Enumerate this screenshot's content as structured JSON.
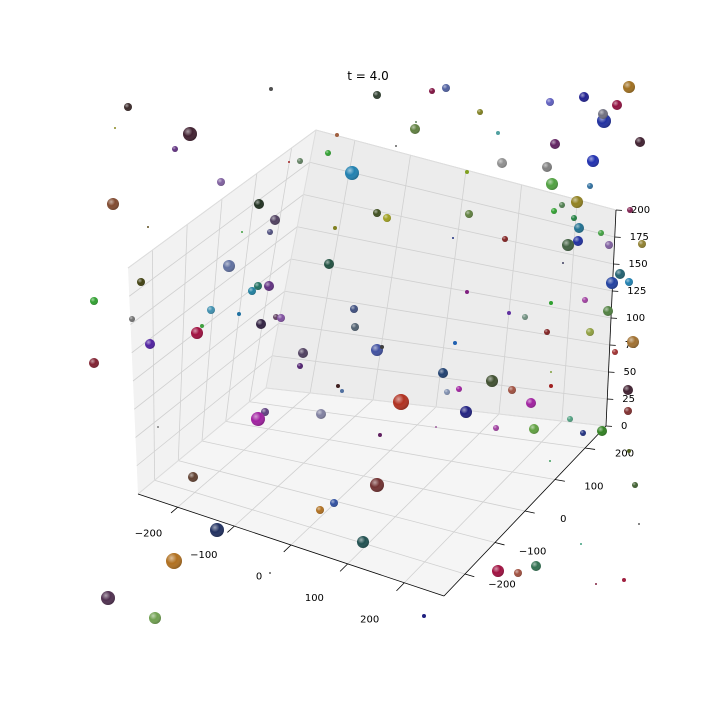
{
  "chart_data": {
    "type": "scatter3d",
    "title": "t = 4.0",
    "xlabel": "",
    "ylabel": "",
    "zlabel": "",
    "xlim": [
      -270,
      270
    ],
    "ylim": [
      -270,
      270
    ],
    "zlim": [
      0,
      200
    ],
    "grid": true,
    "x_ticks": [
      -200,
      -100,
      0,
      100,
      200
    ],
    "y_ticks": [
      -200,
      -100,
      0,
      100,
      200
    ],
    "z_ticks": [
      0,
      25,
      50,
      75,
      100,
      125,
      150,
      175,
      200
    ],
    "x_tick_labels": [
      "−200",
      "−100",
      "0",
      "100",
      "200"
    ],
    "y_tick_labels": [
      "−200",
      "−100",
      "0",
      "100",
      "200"
    ],
    "z_tick_labels": [
      "0",
      "25",
      "50",
      "75",
      "100",
      "125",
      "150",
      "175",
      "200"
    ]
  },
  "spheres": [
    {
      "u": 128,
      "v": 107,
      "r": 4,
      "color": "#3a2a2a"
    },
    {
      "u": 115,
      "v": 128,
      "r": 1,
      "color": "#8a8a20"
    },
    {
      "u": 190,
      "v": 134,
      "r": 7,
      "color": "#402030"
    },
    {
      "u": 175,
      "v": 149,
      "r": 3,
      "color": "#603080"
    },
    {
      "u": 113,
      "v": 204,
      "r": 6,
      "color": "#804a30"
    },
    {
      "u": 148,
      "v": 227,
      "r": 1,
      "color": "#605020"
    },
    {
      "u": 221,
      "v": 182,
      "r": 4,
      "color": "#8060a0"
    },
    {
      "u": 271,
      "v": 89,
      "r": 2,
      "color": "#505050"
    },
    {
      "u": 377,
      "v": 95,
      "r": 4,
      "color": "#304030"
    },
    {
      "u": 432,
      "v": 91,
      "r": 3,
      "color": "#801040"
    },
    {
      "u": 446,
      "v": 88,
      "r": 4,
      "color": "#5060a0"
    },
    {
      "u": 415,
      "v": 129,
      "r": 5,
      "color": "#608040"
    },
    {
      "u": 480,
      "v": 112,
      "r": 3,
      "color": "#808020"
    },
    {
      "u": 498,
      "v": 133,
      "r": 2,
      "color": "#50a0a0"
    },
    {
      "u": 550,
      "v": 102,
      "r": 4,
      "color": "#6060c0"
    },
    {
      "u": 584,
      "v": 97,
      "r": 5,
      "color": "#202090"
    },
    {
      "u": 617,
      "v": 105,
      "r": 5,
      "color": "#901040"
    },
    {
      "u": 629,
      "v": 87,
      "r": 6,
      "color": "#a07020"
    },
    {
      "u": 604,
      "v": 121,
      "r": 7,
      "color": "#2030a0"
    },
    {
      "u": 603,
      "v": 114,
      "r": 5,
      "color": "#707080"
    },
    {
      "u": 640,
      "v": 142,
      "r": 5,
      "color": "#402030"
    },
    {
      "u": 555,
      "v": 144,
      "r": 5,
      "color": "#602060"
    },
    {
      "u": 502,
      "v": 163,
      "r": 5,
      "color": "#909090"
    },
    {
      "u": 547,
      "v": 167,
      "r": 5,
      "color": "#808080"
    },
    {
      "u": 593,
      "v": 161,
      "r": 6,
      "color": "#2030b0"
    },
    {
      "u": 552,
      "v": 184,
      "r": 6,
      "color": "#50a040"
    },
    {
      "u": 590,
      "v": 186,
      "r": 3,
      "color": "#3070a0"
    },
    {
      "u": 577,
      "v": 202,
      "r": 6,
      "color": "#908020"
    },
    {
      "u": 562,
      "v": 205,
      "r": 3,
      "color": "#508050"
    },
    {
      "u": 630,
      "v": 210,
      "r": 3,
      "color": "#802050"
    },
    {
      "u": 352,
      "v": 173,
      "r": 7,
      "color": "#2080b0"
    },
    {
      "u": 328,
      "v": 153,
      "r": 3,
      "color": "#30a030"
    },
    {
      "u": 300,
      "v": 161,
      "r": 3,
      "color": "#608060"
    },
    {
      "u": 467,
      "v": 172,
      "r": 2,
      "color": "#80a020"
    },
    {
      "u": 337,
      "v": 135,
      "r": 2,
      "color": "#a06040"
    },
    {
      "u": 289,
      "v": 162,
      "r": 1,
      "color": "#a02020"
    },
    {
      "u": 259,
      "v": 204,
      "r": 5,
      "color": "#203020"
    },
    {
      "u": 275,
      "v": 220,
      "r": 5,
      "color": "#504060"
    },
    {
      "u": 270,
      "v": 232,
      "r": 3,
      "color": "#505080"
    },
    {
      "u": 242,
      "v": 232,
      "r": 1,
      "color": "#40a040"
    },
    {
      "u": 377,
      "v": 213,
      "r": 4,
      "color": "#405020"
    },
    {
      "u": 387,
      "v": 218,
      "r": 4,
      "color": "#a0a020"
    },
    {
      "u": 335,
      "v": 228,
      "r": 2,
      "color": "#808020"
    },
    {
      "u": 469,
      "v": 214,
      "r": 4,
      "color": "#608040"
    },
    {
      "u": 554,
      "v": 211,
      "r": 3,
      "color": "#30a030"
    },
    {
      "u": 574,
      "v": 218,
      "r": 3,
      "color": "#208040"
    },
    {
      "u": 579,
      "v": 228,
      "r": 5,
      "color": "#207090"
    },
    {
      "u": 601,
      "v": 233,
      "r": 3,
      "color": "#40a040"
    },
    {
      "u": 578,
      "v": 241,
      "r": 5,
      "color": "#2030a0"
    },
    {
      "u": 568,
      "v": 245,
      "r": 6,
      "color": "#406040"
    },
    {
      "u": 505,
      "v": 239,
      "r": 3,
      "color": "#802020"
    },
    {
      "u": 453,
      "v": 238,
      "r": 1,
      "color": "#203080"
    },
    {
      "u": 609,
      "v": 245,
      "r": 4,
      "color": "#8060a0"
    },
    {
      "u": 642,
      "v": 244,
      "r": 4,
      "color": "#908030"
    },
    {
      "u": 620,
      "v": 274,
      "r": 5,
      "color": "#206070"
    },
    {
      "u": 629,
      "v": 282,
      "r": 4,
      "color": "#2080b0"
    },
    {
      "u": 612,
      "v": 283,
      "r": 6,
      "color": "#2040a0"
    },
    {
      "u": 585,
      "v": 300,
      "r": 3,
      "color": "#a040a0"
    },
    {
      "u": 608,
      "v": 311,
      "r": 5,
      "color": "#508040"
    },
    {
      "u": 590,
      "v": 332,
      "r": 4,
      "color": "#90a040"
    },
    {
      "u": 633,
      "v": 342,
      "r": 6,
      "color": "#a07030"
    },
    {
      "u": 615,
      "v": 352,
      "r": 3,
      "color": "#a03030"
    },
    {
      "u": 628,
      "v": 390,
      "r": 5,
      "color": "#402030"
    },
    {
      "u": 628,
      "v": 411,
      "r": 4,
      "color": "#803030"
    },
    {
      "u": 602,
      "v": 431,
      "r": 5,
      "color": "#308020"
    },
    {
      "u": 583,
      "v": 433,
      "r": 3,
      "color": "#203080"
    },
    {
      "u": 570,
      "v": 419,
      "r": 3,
      "color": "#50a080"
    },
    {
      "u": 534,
      "v": 429,
      "r": 5,
      "color": "#60a040"
    },
    {
      "u": 531,
      "v": 403,
      "r": 5,
      "color": "#a020a0"
    },
    {
      "u": 512,
      "v": 390,
      "r": 4,
      "color": "#a05040"
    },
    {
      "u": 492,
      "v": 381,
      "r": 6,
      "color": "#405030"
    },
    {
      "u": 459,
      "v": 389,
      "r": 3,
      "color": "#a020a0"
    },
    {
      "u": 443,
      "v": 373,
      "r": 5,
      "color": "#204070"
    },
    {
      "u": 447,
      "v": 392,
      "r": 3,
      "color": "#8090b0"
    },
    {
      "u": 466,
      "v": 412,
      "r": 6,
      "color": "#202080"
    },
    {
      "u": 496,
      "v": 428,
      "r": 3,
      "color": "#a040a0"
    },
    {
      "u": 551,
      "v": 386,
      "r": 2,
      "color": "#a02020"
    },
    {
      "u": 551,
      "v": 372,
      "r": 1,
      "color": "#80a040"
    },
    {
      "u": 547,
      "v": 332,
      "r": 3,
      "color": "#802020"
    },
    {
      "u": 525,
      "v": 317,
      "r": 3,
      "color": "#709080"
    },
    {
      "u": 509,
      "v": 313,
      "r": 2,
      "color": "#6030a0"
    },
    {
      "u": 551,
      "v": 303,
      "r": 2,
      "color": "#30a030"
    },
    {
      "u": 467,
      "v": 292,
      "r": 2,
      "color": "#802080"
    },
    {
      "u": 455,
      "v": 343,
      "r": 2,
      "color": "#2060b0"
    },
    {
      "u": 401,
      "v": 402,
      "r": 8,
      "color": "#b03020"
    },
    {
      "u": 377,
      "v": 485,
      "r": 7,
      "color": "#703030"
    },
    {
      "u": 363,
      "v": 542,
      "r": 6,
      "color": "#205050"
    },
    {
      "u": 334,
      "v": 503,
      "r": 4,
      "color": "#3050a0"
    },
    {
      "u": 320,
      "v": 510,
      "r": 4,
      "color": "#b07020"
    },
    {
      "u": 380,
      "v": 435,
      "r": 2,
      "color": "#602060"
    },
    {
      "u": 321,
      "v": 414,
      "r": 5,
      "color": "#8080a0"
    },
    {
      "u": 342,
      "v": 391,
      "r": 2,
      "color": "#5070a0"
    },
    {
      "u": 338,
      "v": 386,
      "r": 2,
      "color": "#402020"
    },
    {
      "u": 377,
      "v": 350,
      "r": 6,
      "color": "#4050a0"
    },
    {
      "u": 382,
      "v": 347,
      "r": 2,
      "color": "#404040"
    },
    {
      "u": 354,
      "v": 309,
      "r": 4,
      "color": "#405080"
    },
    {
      "u": 355,
      "v": 327,
      "r": 4,
      "color": "#506070"
    },
    {
      "u": 329,
      "v": 264,
      "r": 5,
      "color": "#205040"
    },
    {
      "u": 303,
      "v": 353,
      "r": 5,
      "color": "#504060"
    },
    {
      "u": 300,
      "v": 366,
      "r": 3,
      "color": "#502070"
    },
    {
      "u": 276,
      "v": 317,
      "r": 3,
      "color": "#604060"
    },
    {
      "u": 281,
      "v": 318,
      "r": 4,
      "color": "#8050a0"
    },
    {
      "u": 269,
      "v": 286,
      "r": 5,
      "color": "#603080"
    },
    {
      "u": 258,
      "v": 286,
      "r": 4,
      "color": "#207060"
    },
    {
      "u": 252,
      "v": 291,
      "r": 4,
      "color": "#2080a0"
    },
    {
      "u": 261,
      "v": 324,
      "r": 5,
      "color": "#302040"
    },
    {
      "u": 229,
      "v": 266,
      "r": 6,
      "color": "#6070a0"
    },
    {
      "u": 239,
      "v": 314,
      "r": 2,
      "color": "#2070a0"
    },
    {
      "u": 211,
      "v": 310,
      "r": 4,
      "color": "#4090b0"
    },
    {
      "u": 197,
      "v": 333,
      "r": 6,
      "color": "#a01040"
    },
    {
      "u": 202,
      "v": 326,
      "r": 2,
      "color": "#40a040"
    },
    {
      "u": 150,
      "v": 344,
      "r": 5,
      "color": "#5020a0"
    },
    {
      "u": 132,
      "v": 319,
      "r": 3,
      "color": "#707070"
    },
    {
      "u": 141,
      "v": 282,
      "r": 4,
      "color": "#404010"
    },
    {
      "u": 94,
      "v": 301,
      "r": 4,
      "color": "#30a030"
    },
    {
      "u": 94,
      "v": 363,
      "r": 5,
      "color": "#802030"
    },
    {
      "u": 265,
      "v": 412,
      "r": 4,
      "color": "#604080"
    },
    {
      "u": 258,
      "v": 419,
      "r": 7,
      "color": "#a020a0"
    },
    {
      "u": 193,
      "v": 477,
      "r": 5,
      "color": "#604030"
    },
    {
      "u": 217,
      "v": 530,
      "r": 7,
      "color": "#203060"
    },
    {
      "u": 174,
      "v": 561,
      "r": 8,
      "color": "#b07020"
    },
    {
      "u": 108,
      "v": 598,
      "r": 7,
      "color": "#503050"
    },
    {
      "u": 155,
      "v": 618,
      "r": 6,
      "color": "#70a050"
    },
    {
      "u": 498,
      "v": 571,
      "r": 6,
      "color": "#a01040"
    },
    {
      "u": 518,
      "v": 573,
      "r": 4,
      "color": "#a05040"
    },
    {
      "u": 536,
      "v": 566,
      "r": 5,
      "color": "#307050"
    },
    {
      "u": 424,
      "v": 616,
      "r": 2,
      "color": "#202080"
    },
    {
      "u": 596,
      "v": 584,
      "r": 1,
      "color": "#802040"
    },
    {
      "u": 624,
      "v": 580,
      "r": 2,
      "color": "#a02040"
    },
    {
      "u": 581,
      "v": 544,
      "r": 1,
      "color": "#40a080"
    },
    {
      "u": 635,
      "v": 485,
      "r": 3,
      "color": "#406030"
    },
    {
      "u": 629,
      "v": 451,
      "r": 2,
      "color": "#506020"
    },
    {
      "u": 639,
      "v": 524,
      "r": 1,
      "color": "#606060"
    },
    {
      "u": 550,
      "v": 461,
      "r": 1,
      "color": "#40a060"
    },
    {
      "u": 436,
      "v": 427,
      "r": 1,
      "color": "#a060a0"
    },
    {
      "u": 270,
      "v": 573,
      "r": 1,
      "color": "#606060"
    },
    {
      "u": 158,
      "v": 427,
      "r": 1,
      "color": "#808080"
    },
    {
      "u": 396,
      "v": 146,
      "r": 1,
      "color": "#606060"
    },
    {
      "u": 416,
      "v": 122,
      "r": 1,
      "color": "#608060"
    },
    {
      "u": 563,
      "v": 263,
      "r": 1,
      "color": "#404060"
    }
  ]
}
